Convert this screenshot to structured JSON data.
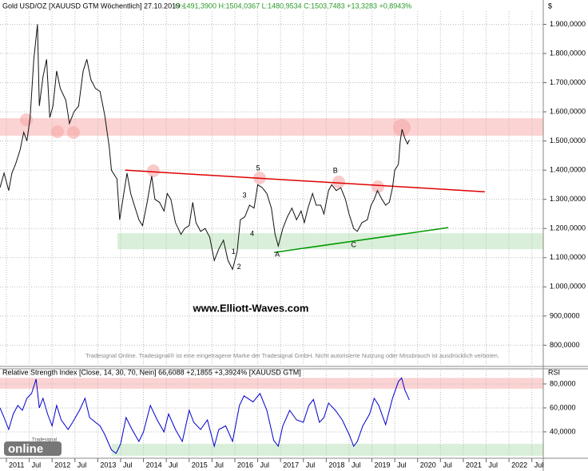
{
  "chart_data": [
    {
      "type": "line",
      "title": "Gold USD/OZ [XAUUSD GTM  Wöchentlich] 27.10.2019 -",
      "subtitle": "O:1491,3900 H:1504,0367 L:1480,9534 C:1503,7483 +13,3283 +0,8943%",
      "axis_unit": "$",
      "watermark": "www.Elliott-Waves.com",
      "note": "Tradesignal Online. Tradesignal® ist eine eingetragene Marke der Tradesignal GmbH. Nicht autorisierte Nutzung oder Missbrauch ist ausdrücklich verboten.",
      "x": [
        2010.86,
        2010.95,
        2011.05,
        2011.12,
        2011.2,
        2011.3,
        2011.38,
        2011.45,
        2011.52,
        2011.6,
        2011.68,
        2011.72,
        2011.8,
        2011.88,
        2011.95,
        2012.02,
        2012.1,
        2012.18,
        2012.3,
        2012.38,
        2012.48,
        2012.58,
        2012.68,
        2012.76,
        2012.85,
        2012.95,
        2013.05,
        2013.15,
        2013.25,
        2013.3,
        2013.42,
        2013.48,
        2013.55,
        2013.64,
        2013.72,
        2013.8,
        2013.9,
        2013.98,
        2014.08,
        2014.18,
        2014.25,
        2014.35,
        2014.45,
        2014.52,
        2014.6,
        2014.7,
        2014.82,
        2014.9,
        2015.0,
        2015.08,
        2015.15,
        2015.25,
        2015.35,
        2015.45,
        2015.55,
        2015.65,
        2015.75,
        2015.85,
        2015.95,
        2016.05,
        2016.12,
        2016.22,
        2016.32,
        2016.42,
        2016.5,
        2016.6,
        2016.7,
        2016.8,
        2016.88,
        2016.95,
        2017.05,
        2017.15,
        2017.25,
        2017.35,
        2017.45,
        2017.52,
        2017.6,
        2017.7,
        2017.78,
        2017.88,
        2017.95,
        2018.05,
        2018.12,
        2018.22,
        2018.32,
        2018.42,
        2018.5,
        2018.6,
        2018.68,
        2018.78,
        2018.9,
        2018.98,
        2019.05,
        2019.12,
        2019.22,
        2019.3,
        2019.38,
        2019.45,
        2019.5,
        2019.58,
        2019.62,
        2019.66,
        2019.72,
        2019.78,
        2019.82
      ],
      "series": [
        {
          "color": "#111111",
          "values": [
            1340,
            1390,
            1330,
            1390,
            1420,
            1470,
            1530,
            1500,
            1580,
            1780,
            1900,
            1620,
            1720,
            1780,
            1580,
            1620,
            1740,
            1680,
            1640,
            1560,
            1600,
            1620,
            1740,
            1780,
            1710,
            1680,
            1670,
            1590,
            1480,
            1400,
            1370,
            1230,
            1300,
            1390,
            1320,
            1280,
            1230,
            1210,
            1290,
            1380,
            1300,
            1290,
            1260,
            1320,
            1300,
            1220,
            1180,
            1200,
            1210,
            1290,
            1220,
            1190,
            1200,
            1170,
            1090,
            1130,
            1160,
            1090,
            1060,
            1120,
            1230,
            1240,
            1280,
            1270,
            1350,
            1340,
            1320,
            1270,
            1180,
            1140,
            1200,
            1240,
            1270,
            1230,
            1260,
            1220,
            1270,
            1320,
            1280,
            1280,
            1250,
            1330,
            1350,
            1330,
            1340,
            1300,
            1250,
            1200,
            1190,
            1220,
            1230,
            1280,
            1300,
            1330,
            1300,
            1280,
            1290,
            1340,
            1400,
            1420,
            1500,
            1540,
            1510,
            1490,
            1504
          ]
        }
      ],
      "xlim": [
        2010.86,
        2022.75
      ],
      "ylim": [
        730,
        1945
      ],
      "yticks": [
        {
          "value": 800,
          "label": "800,0000"
        },
        {
          "value": 900,
          "label": "900,0000"
        },
        {
          "value": 1000,
          "label": "1.000,0000"
        },
        {
          "value": 1100,
          "label": "1.100,0000"
        },
        {
          "value": 1200,
          "label": "1.200,0000"
        },
        {
          "value": 1300,
          "label": "1.300,0000"
        },
        {
          "value": 1400,
          "label": "1.400,0000"
        },
        {
          "value": 1500,
          "label": "1.500,0000"
        },
        {
          "value": 1600,
          "label": "1.600,0000"
        },
        {
          "value": 1700,
          "label": "1.700,0000"
        },
        {
          "value": 1800,
          "label": "1.800,0000"
        },
        {
          "value": 1900,
          "label": "1.900,0000"
        }
      ],
      "grid": true,
      "zones": [
        {
          "from": 1518,
          "to": 1578,
          "color": "#fbd3d3"
        },
        {
          "from": 1129,
          "to": 1184,
          "x_from": 2013.43,
          "color": "#d9efd9"
        }
      ],
      "trendlines": [
        {
          "x": [
            2013.6,
            2021.47
          ],
          "y": [
            1400,
            1326
          ],
          "color": "#e00000"
        },
        {
          "x": [
            2016.86,
            2020.67
          ],
          "y": [
            1118,
            1203
          ],
          "color": "#009900"
        }
      ],
      "annotations": [
        {
          "text": "1",
          "x": 2015.97,
          "y": 1119
        },
        {
          "text": "2",
          "x": 2016.09,
          "y": 1067
        },
        {
          "text": "3",
          "x": 2016.21,
          "y": 1313
        },
        {
          "text": "4",
          "x": 2016.38,
          "y": 1181
        },
        {
          "text": "5",
          "x": 2016.51,
          "y": 1406
        },
        {
          "text": "A",
          "x": 2016.93,
          "y": 1110
        },
        {
          "text": "B",
          "x": 2018.2,
          "y": 1398
        },
        {
          "text": "C",
          "x": 2018.6,
          "y": 1143
        }
      ]
    },
    {
      "type": "line",
      "title": "Relative Strength Index [Close, 14, 30, 70, Nein] 66,6088 +2,1855 +3,3924% [XAUUSD GTM]",
      "axis_unit": "RSI",
      "logo": {
        "brand": "Tradesignal",
        "text": "online"
      },
      "x": [
        2010.86,
        2010.95,
        2011.05,
        2011.15,
        2011.25,
        2011.35,
        2011.45,
        2011.55,
        2011.65,
        2011.72,
        2011.8,
        2011.9,
        2012.0,
        2012.1,
        2012.2,
        2012.35,
        2012.45,
        2012.6,
        2012.72,
        2012.82,
        2012.95,
        2013.05,
        2013.15,
        2013.3,
        2013.4,
        2013.5,
        2013.62,
        2013.75,
        2013.9,
        2014.0,
        2014.15,
        2014.3,
        2014.45,
        2014.55,
        2014.7,
        2014.85,
        2015.0,
        2015.1,
        2015.25,
        2015.4,
        2015.55,
        2015.65,
        2015.8,
        2015.95,
        2016.1,
        2016.2,
        2016.4,
        2016.55,
        2016.7,
        2016.85,
        2016.95,
        2017.05,
        2017.2,
        2017.35,
        2017.5,
        2017.62,
        2017.72,
        2017.85,
        2017.95,
        2018.05,
        2018.2,
        2018.35,
        2018.5,
        2018.6,
        2018.68,
        2018.8,
        2018.95,
        2019.05,
        2019.15,
        2019.3,
        2019.45,
        2019.58,
        2019.65,
        2019.72,
        2019.82
      ],
      "series": [
        {
          "color": "#0000cc",
          "values": [
            60,
            52,
            42,
            55,
            62,
            58,
            68,
            72,
            84,
            60,
            68,
            55,
            45,
            62,
            50,
            42,
            48,
            58,
            68,
            52,
            48,
            45,
            38,
            25,
            22,
            30,
            52,
            42,
            32,
            40,
            62,
            50,
            40,
            55,
            42,
            32,
            58,
            48,
            42,
            50,
            28,
            42,
            45,
            32,
            62,
            70,
            65,
            72,
            58,
            33,
            28,
            45,
            58,
            50,
            48,
            62,
            67,
            48,
            52,
            64,
            58,
            50,
            38,
            28,
            32,
            45,
            55,
            68,
            62,
            46,
            68,
            82,
            85,
            75,
            66.6
          ]
        }
      ],
      "xlim": [
        2010.86,
        2022.75
      ],
      "ylim": [
        19.3,
        91.3
      ],
      "yticks": [
        {
          "value": 40,
          "label": "40,0000"
        },
        {
          "value": 60,
          "label": "60,0000"
        },
        {
          "value": 80,
          "label": "80,0000"
        }
      ],
      "xticks": [
        {
          "value": 2011,
          "label": "2011"
        },
        {
          "value": 2011.5,
          "label": "Jul"
        },
        {
          "value": 2012,
          "label": "2012"
        },
        {
          "value": 2012.5,
          "label": "Jul"
        },
        {
          "value": 2013,
          "label": "2013"
        },
        {
          "value": 2013.5,
          "label": "Jul"
        },
        {
          "value": 2014,
          "label": "2014"
        },
        {
          "value": 2014.5,
          "label": "Jul"
        },
        {
          "value": 2015,
          "label": "2015"
        },
        {
          "value": 2015.5,
          "label": "Jul"
        },
        {
          "value": 2016,
          "label": "2016"
        },
        {
          "value": 2016.5,
          "label": "Jul"
        },
        {
          "value": 2017,
          "label": "2017"
        },
        {
          "value": 2017.5,
          "label": "Jul"
        },
        {
          "value": 2018,
          "label": "2018"
        },
        {
          "value": 2018.5,
          "label": "Jul"
        },
        {
          "value": 2019,
          "label": "2019"
        },
        {
          "value": 2019.5,
          "label": "Jul"
        },
        {
          "value": 2020,
          "label": "2020"
        },
        {
          "value": 2020.5,
          "label": "Jul"
        },
        {
          "value": 2021,
          "label": "2021"
        },
        {
          "value": 2021.5,
          "label": "Jul"
        },
        {
          "value": 2022,
          "label": "2022"
        },
        {
          "value": 2022.5,
          "label": "Jul"
        }
      ],
      "grid": true,
      "zones": [
        {
          "from": 76,
          "to": 85,
          "color": "#fbd3d3"
        },
        {
          "from": 20,
          "to": 30,
          "x_from": 2013.3,
          "color": "#d9efd9"
        }
      ]
    }
  ]
}
